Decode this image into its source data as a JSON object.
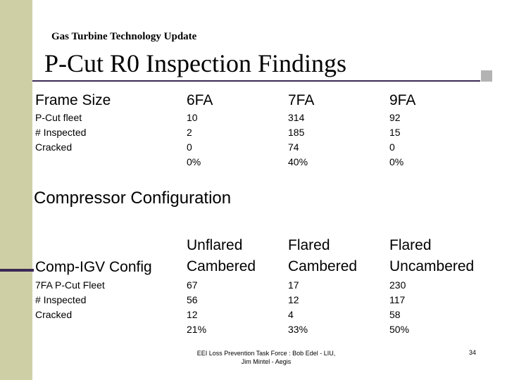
{
  "header": {
    "subtitle": "Gas Turbine Technology Update",
    "title": "P-Cut R0 Inspection Findings"
  },
  "frame_table": {
    "header_label": "Frame Size",
    "columns": [
      "6FA",
      "7FA",
      "9FA"
    ],
    "row_labels": [
      "P-Cut fleet",
      "# Inspected",
      "Cracked"
    ],
    "values": [
      [
        "10",
        "2",
        "0",
        "0%"
      ],
      [
        "314",
        "185",
        "74",
        "40%"
      ],
      [
        "92",
        "15",
        "0",
        "0%"
      ]
    ]
  },
  "compressor": {
    "section_title": "Compressor Configuration",
    "header_label": "Comp-IGV Config",
    "columns": [
      [
        "Unflared",
        "Cambered"
      ],
      [
        "Flared",
        "Cambered"
      ],
      [
        "Flared",
        "Uncambered"
      ]
    ],
    "row_labels": [
      "7FA P-Cut Fleet",
      "# Inspected",
      "Cracked"
    ],
    "values": [
      [
        "67",
        "56",
        "12",
        "21%"
      ],
      [
        "17",
        "12",
        "4",
        "33%"
      ],
      [
        "230",
        "117",
        "58",
        "50%"
      ]
    ]
  },
  "footer": {
    "line1": "EEI Loss Prevention Task Force : Bob Edel - LIU,",
    "line2": "Jim Mintel - Aegis",
    "page_number": "34"
  }
}
